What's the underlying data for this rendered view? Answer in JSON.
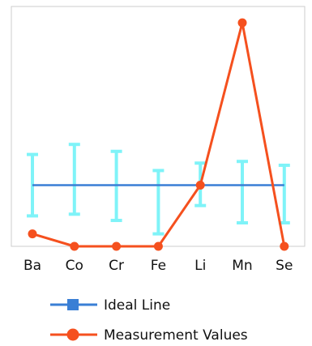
{
  "chart_data": {
    "type": "line",
    "categories": [
      "Ba",
      "Co",
      "Cr",
      "Fe",
      "Li",
      "Mn",
      "Se"
    ],
    "ylim": [
      0,
      100
    ],
    "grid": false,
    "legend_position": "bottom-left",
    "series": [
      {
        "name": "Ideal Line",
        "color": "#3a7fd5",
        "marker": "square",
        "values": [
          25.5,
          25.5,
          25.5,
          25.5,
          25.5,
          25.5,
          25.5
        ]
      },
      {
        "name": "Measurement Values",
        "color": "#f5501e",
        "marker": "circle",
        "values": [
          5.2,
          0,
          0,
          0,
          25.5,
          93.2,
          0
        ]
      }
    ],
    "error_bars": {
      "color": "#7ff3f8",
      "center": [
        25.5,
        25.5,
        25.5,
        25.5,
        25.5,
        25.5,
        25.5
      ],
      "upper": [
        38.3,
        42.5,
        39.6,
        31.6,
        34.7,
        35.4,
        33.8
      ],
      "lower": [
        12.7,
        13.4,
        10.8,
        5.2,
        17.0,
        9.8,
        9.8
      ]
    }
  }
}
